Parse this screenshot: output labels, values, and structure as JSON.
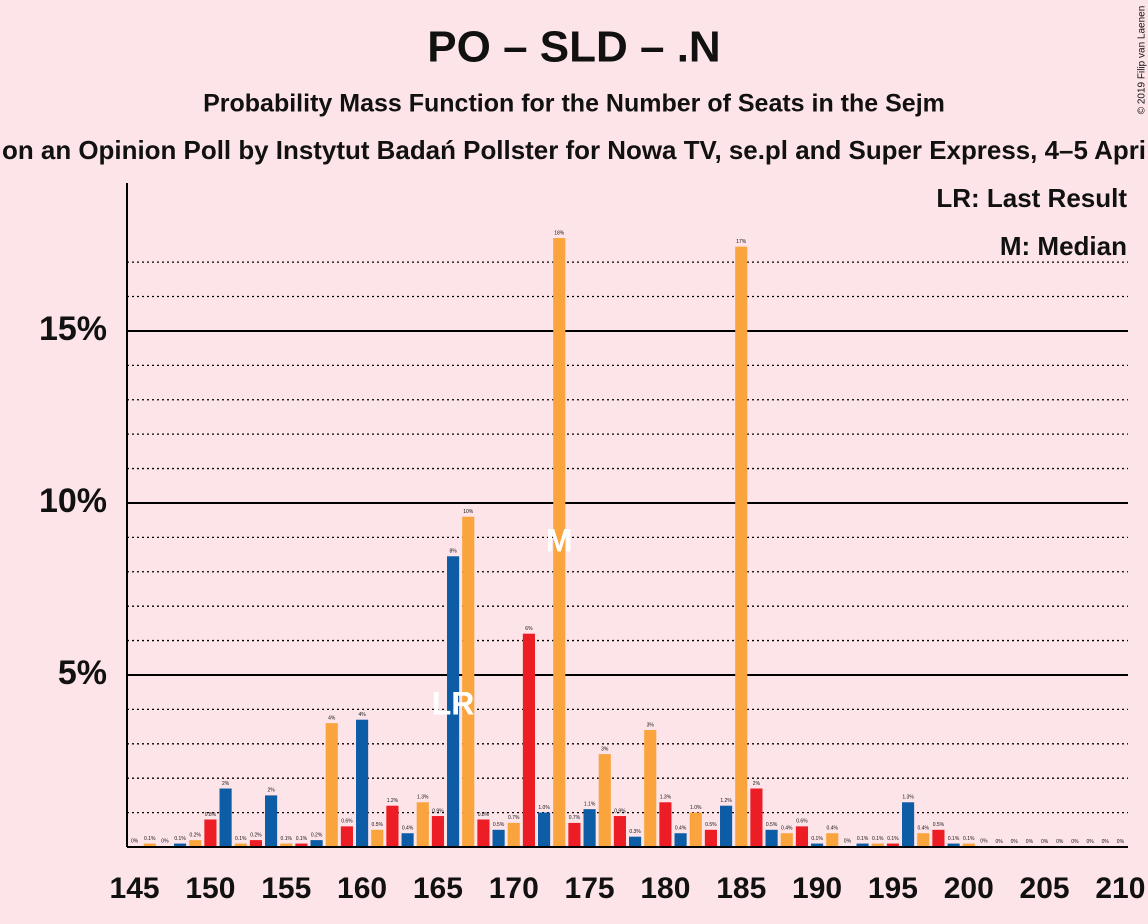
{
  "chart_data": {
    "type": "bar",
    "title": "PO – SLD – .N",
    "subtitle": "Probability Mass Function for the Number of Seats in the Sejm",
    "subtitle2": "on an Opinion Poll by Instytut Badań Pollster for Nowa TV, se.pl and Super Express, 4–5 Apri",
    "copyright": "© 2019 Filip van Laenen",
    "legend": [
      "LR: Last Result",
      "M: Median"
    ],
    "last_result": {
      "label": "LR",
      "x": 166
    },
    "median": {
      "label": "M",
      "x": 173
    },
    "colors": [
      "#0d5ca6",
      "#f9a43c",
      "#ec1d24"
    ],
    "x": [
      145,
      146,
      147,
      148,
      149,
      150,
      151,
      152,
      153,
      154,
      155,
      156,
      157,
      158,
      159,
      160,
      161,
      162,
      163,
      164,
      165,
      166,
      167,
      168,
      169,
      170,
      171,
      172,
      173,
      174,
      175,
      176,
      177,
      178,
      179,
      180,
      181,
      182,
      183,
      184,
      185,
      186,
      187,
      188,
      189,
      190,
      191,
      192,
      193,
      194,
      195,
      196,
      197,
      198,
      199,
      200,
      201,
      202,
      203,
      204,
      205,
      206,
      207,
      208,
      209,
      210
    ],
    "values": [
      0.02,
      0.1,
      0.02,
      0.1,
      0.2,
      0.8,
      1.7,
      0.1,
      0.2,
      1.5,
      0.1,
      0.1,
      0.2,
      3.6,
      0.6,
      3.7,
      0.5,
      1.2,
      0.4,
      1.3,
      0.9,
      8.45,
      9.6,
      0.8,
      0.5,
      0.7,
      6.2,
      1.0,
      17.7,
      0.7,
      1.1,
      2.7,
      0.9,
      0.3,
      3.4,
      1.3,
      0.4,
      1.0,
      0.5,
      1.2,
      17.45,
      1.7,
      0.5,
      0.4,
      0.6,
      0.1,
      0.4,
      0.02,
      0.1,
      0.1,
      0.1,
      1.3,
      0.4,
      0.5,
      0.1,
      0.1,
      0.02,
      0.01,
      0.01,
      0.01,
      0.01,
      0.01,
      0.01,
      0.01,
      0.01,
      0.01
    ],
    "value_labels": [
      "0%",
      "0.1%",
      "0%",
      "0.1%",
      "0.2%",
      "0.8%",
      "2%",
      "0.1%",
      "0.2%",
      "2%",
      "0.1%",
      "0.1%",
      "0.2%",
      "4%",
      "0.6%",
      "4%",
      "0.5%",
      "1.2%",
      "0.4%",
      "1.3%",
      "0.9%",
      "8%",
      "10%",
      "0.8%",
      "0.5%",
      "0.7%",
      "6%",
      "1.0%",
      "18%",
      "0.7%",
      "1.1%",
      "3%",
      "0.9%",
      "0.3%",
      "3%",
      "1.3%",
      "0.4%",
      "1.0%",
      "0.5%",
      "1.2%",
      "17%",
      "2%",
      "0.5%",
      "0.4%",
      "0.6%",
      "0.1%",
      "0.4%",
      "0%",
      "0.1%",
      "0.1%",
      "0.1%",
      "1.3%",
      "0.4%",
      "0.5%",
      "0.1%",
      "0.1%",
      "0%",
      "0%",
      "0%",
      "0%",
      "0%",
      "0%",
      "0%",
      "0%",
      "0%",
      "0%"
    ],
    "xlim": [
      144.5,
      210.5
    ],
    "xticks": [
      145,
      150,
      155,
      160,
      165,
      170,
      175,
      180,
      185,
      190,
      195,
      200,
      205,
      210
    ],
    "ylim": [
      0,
      19.3
    ],
    "yticks": [
      {
        "value": 5,
        "label": "5%"
      },
      {
        "value": 10,
        "label": "10%"
      },
      {
        "value": 15,
        "label": "15%"
      }
    ],
    "minor_yticks": [
      1,
      2,
      3,
      4,
      6,
      7,
      8,
      9,
      11,
      12,
      13,
      14,
      16,
      17
    ],
    "grid": true
  }
}
